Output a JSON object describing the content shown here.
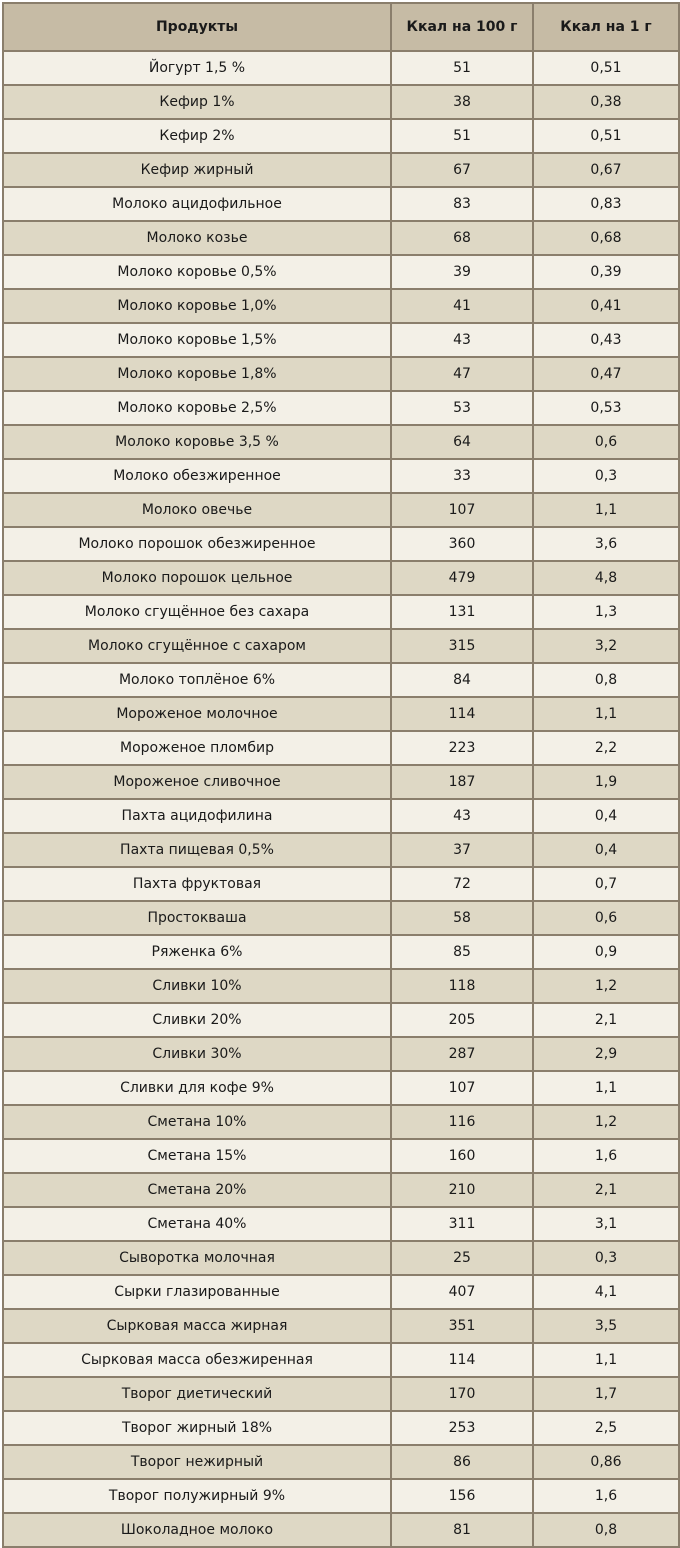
{
  "table": {
    "headers": [
      "Продукты",
      "Ккал на 100 г",
      "Ккал на 1 г"
    ],
    "rows": [
      [
        "Йогурт 1,5 %",
        "51",
        "0,51"
      ],
      [
        "Кефир 1%",
        "38",
        "0,38"
      ],
      [
        "Кефир 2%",
        "51",
        "0,51"
      ],
      [
        "Кефир жирный",
        "67",
        "0,67"
      ],
      [
        "Молоко ацидофильное",
        "83",
        "0,83"
      ],
      [
        "Молоко козье",
        "68",
        "0,68"
      ],
      [
        "Молоко коровье 0,5%",
        "39",
        "0,39"
      ],
      [
        "Молоко коровье 1,0%",
        "41",
        "0,41"
      ],
      [
        "Молоко коровье 1,5%",
        "43",
        "0,43"
      ],
      [
        "Молоко коровье 1,8%",
        "47",
        "0,47"
      ],
      [
        "Молоко коровье 2,5%",
        "53",
        "0,53"
      ],
      [
        "Молоко коровье 3,5 %",
        "64",
        "0,6"
      ],
      [
        "Молоко обезжиренное",
        "33",
        "0,3"
      ],
      [
        "Молоко овечье",
        "107",
        "1,1"
      ],
      [
        "Молоко порошок обезжиренное",
        "360",
        "3,6"
      ],
      [
        "Молоко порошок цельное",
        "479",
        "4,8"
      ],
      [
        "Молоко сгущённое без сахара",
        "131",
        "1,3"
      ],
      [
        "Молоко сгущённое с сахаром",
        "315",
        "3,2"
      ],
      [
        "Молоко топлёное 6%",
        "84",
        "0,8"
      ],
      [
        "Мороженое молочное",
        "114",
        "1,1"
      ],
      [
        "Мороженое пломбир",
        "223",
        "2,2"
      ],
      [
        "Мороженое сливочное",
        "187",
        "1,9"
      ],
      [
        "Пахта ацидофилина",
        "43",
        "0,4"
      ],
      [
        "Пахта пищевая 0,5%",
        "37",
        "0,4"
      ],
      [
        "Пахта фруктовая",
        "72",
        "0,7"
      ],
      [
        "Простокваша",
        "58",
        "0,6"
      ],
      [
        "Ряженка 6%",
        "85",
        "0,9"
      ],
      [
        "Сливки 10%",
        "118",
        "1,2"
      ],
      [
        "Сливки 20%",
        "205",
        "2,1"
      ],
      [
        "Сливки 30%",
        "287",
        "2,9"
      ],
      [
        "Сливки для кофе 9%",
        "107",
        "1,1"
      ],
      [
        "Сметана 10%",
        "116",
        "1,2"
      ],
      [
        "Сметана 15%",
        "160",
        "1,6"
      ],
      [
        "Сметана 20%",
        "210",
        "2,1"
      ],
      [
        "Сметана 40%",
        "311",
        "3,1"
      ],
      [
        "Сыворотка молочная",
        "25",
        "0,3"
      ],
      [
        "Сырки глазированные",
        "407",
        "4,1"
      ],
      [
        "Сырковая масса жирная",
        "351",
        "3,5"
      ],
      [
        "Сырковая масса обезжиренная",
        "114",
        "1,1"
      ],
      [
        "Творог диетический",
        "170",
        "1,7"
      ],
      [
        "Творог жирный 18%",
        "253",
        "2,5"
      ],
      [
        "Творог нежирный",
        "86",
        "0,86"
      ],
      [
        "Творог полужирный 9%",
        "156",
        "1,6"
      ],
      [
        "Шоколадное молоко",
        "81",
        "0,8"
      ]
    ]
  },
  "colors": {
    "header_bg": "#c6bba5",
    "row_light": "#f3f0e7",
    "row_dark": "#ded8c5",
    "border": "#8a7e6c"
  }
}
